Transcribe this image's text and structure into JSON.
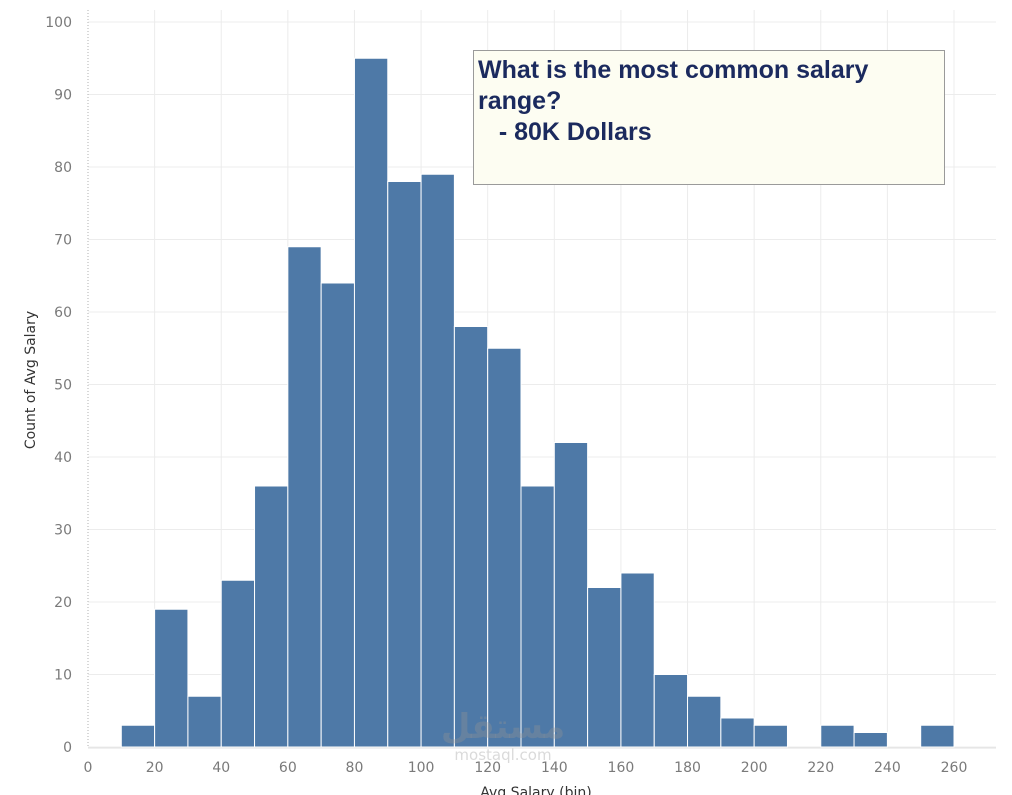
{
  "chart_data": {
    "type": "bar",
    "xlabel": "Avg Salary (bin)",
    "ylabel": "Count of Avg Salary",
    "bin_width": 10,
    "bins": [
      10,
      20,
      30,
      40,
      50,
      60,
      70,
      80,
      90,
      100,
      110,
      120,
      130,
      140,
      150,
      160,
      170,
      180,
      190,
      200,
      220,
      230,
      250
    ],
    "values": [
      3,
      19,
      7,
      23,
      36,
      69,
      64,
      95,
      78,
      79,
      58,
      55,
      36,
      42,
      22,
      24,
      10,
      7,
      4,
      3,
      3,
      2,
      3
    ],
    "xlim": [
      0,
      260
    ],
    "ylim": [
      0,
      100
    ],
    "x_ticks": [
      "0",
      "20",
      "40",
      "60",
      "80",
      "100",
      "120",
      "140",
      "160",
      "180",
      "200",
      "220",
      "240",
      "260"
    ],
    "y_ticks": [
      "0",
      "10",
      "20",
      "30",
      "40",
      "50",
      "60",
      "70",
      "80",
      "90",
      "100"
    ],
    "grid": true,
    "bar_color": "#4e79a7",
    "annotation": {
      "lines": [
        "What is the most common salary",
        "range?",
        "   - 80K Dollars"
      ]
    }
  },
  "watermark": {
    "logo": "مستقل",
    "url": "mostaql.com"
  }
}
